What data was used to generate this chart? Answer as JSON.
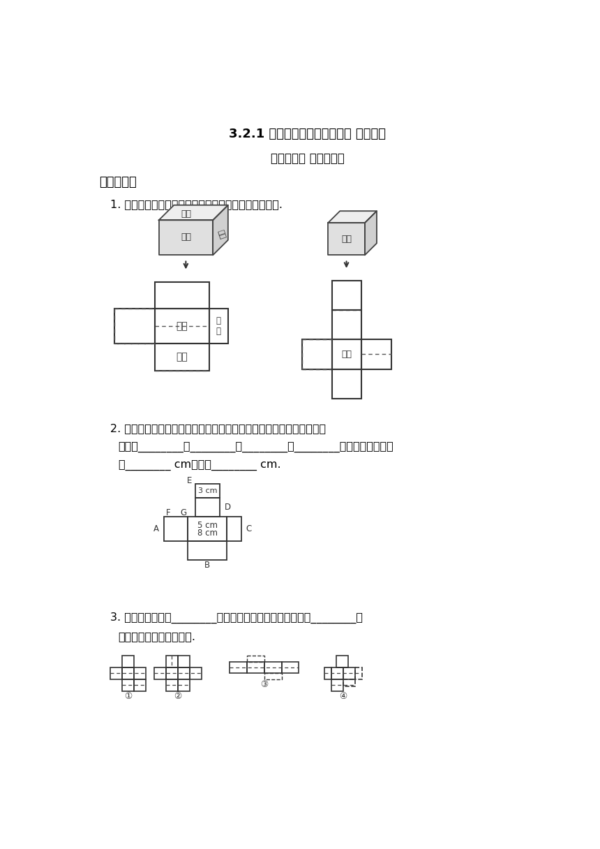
{
  "title1": "3.2.1 长方体和正方体的展开图 同步练习",
  "title2": "人教版数学 五年级下册",
  "section1": "一、填空题",
  "q1_text": "1. 把下面长方体和正方体展开图上其余的每个面标出来.",
  "q2_text1": "2. 下图是一个不完整的长方体展开图，已有五个面，缺少的面可以画在",
  "q2_text2": "图中的________，________，________，________位置，这个面的长",
  "q2_text3": "是________ cm，宽是________ cm.",
  "q3_text1": "3. 下列图形中，图________沿虚线折叠后能围成正方体，图________沿",
  "q3_text2": "虚线折叠后能围成长方体.",
  "bg_color": "#ffffff",
  "text_color": "#000000",
  "line_color": "#333333"
}
